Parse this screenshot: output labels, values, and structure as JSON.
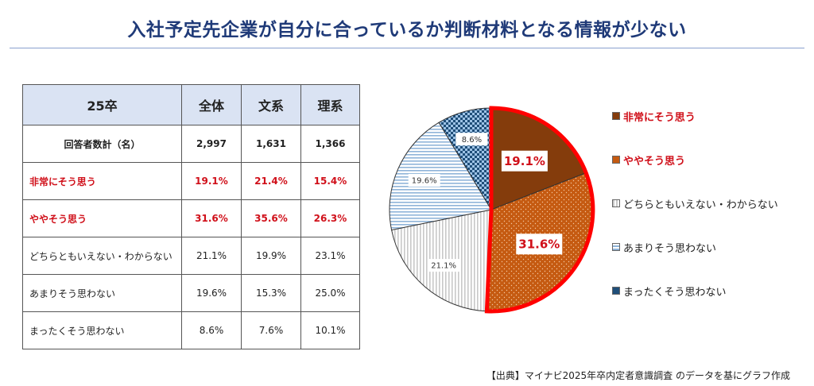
{
  "title": "入社予定先企業が自分に合っているか判断材料となる情報が少ない",
  "source": "【出典】マイナビ2025年卒内定者意識調査 のデータを基にグラフ作成",
  "table": {
    "headers": [
      "25卒",
      "全体",
      "文系",
      "理系"
    ],
    "rows": [
      {
        "label": "回答者数計（名）",
        "values": [
          "2,997",
          "1,631",
          "1,366"
        ],
        "style": "total"
      },
      {
        "label": "非常にそう思う",
        "values": [
          "19.1%",
          "21.4%",
          "15.4%"
        ],
        "style": "hl"
      },
      {
        "label": "ややそう思う",
        "values": [
          "31.6%",
          "35.6%",
          "26.3%"
        ],
        "style": "hl"
      },
      {
        "label": "どちらともいえない・わからない",
        "values": [
          "21.1%",
          "19.9%",
          "23.1%"
        ],
        "style": "normal"
      },
      {
        "label": "あまりそう思わない",
        "values": [
          "19.6%",
          "15.3%",
          "25.0%"
        ],
        "style": "normal"
      },
      {
        "label": "まったくそう思わない",
        "values": [
          "8.6%",
          "7.6%",
          "10.1%"
        ],
        "style": "normal"
      }
    ]
  },
  "chart_data": {
    "type": "pie",
    "categories": [
      "非常にそう思う",
      "ややそう思う",
      "どちらともいえない・わからない",
      "あまりそう思わない",
      "まったくそう思わない"
    ],
    "values": [
      19.1,
      31.6,
      21.1,
      19.6,
      8.6
    ],
    "data_labels": [
      "19.1%",
      "31.6%",
      "21.1%",
      "19.6%",
      "8.6%"
    ],
    "colors": [
      "#843c0c",
      "#c55a11",
      "#e8e8e8",
      "#bdd7ee",
      "#1f4e79"
    ],
    "highlight_color": "#ff0000",
    "highlighted": [
      0,
      1
    ],
    "start_angle_deg": 0,
    "direction": "clockwise",
    "legend_position": "right"
  }
}
